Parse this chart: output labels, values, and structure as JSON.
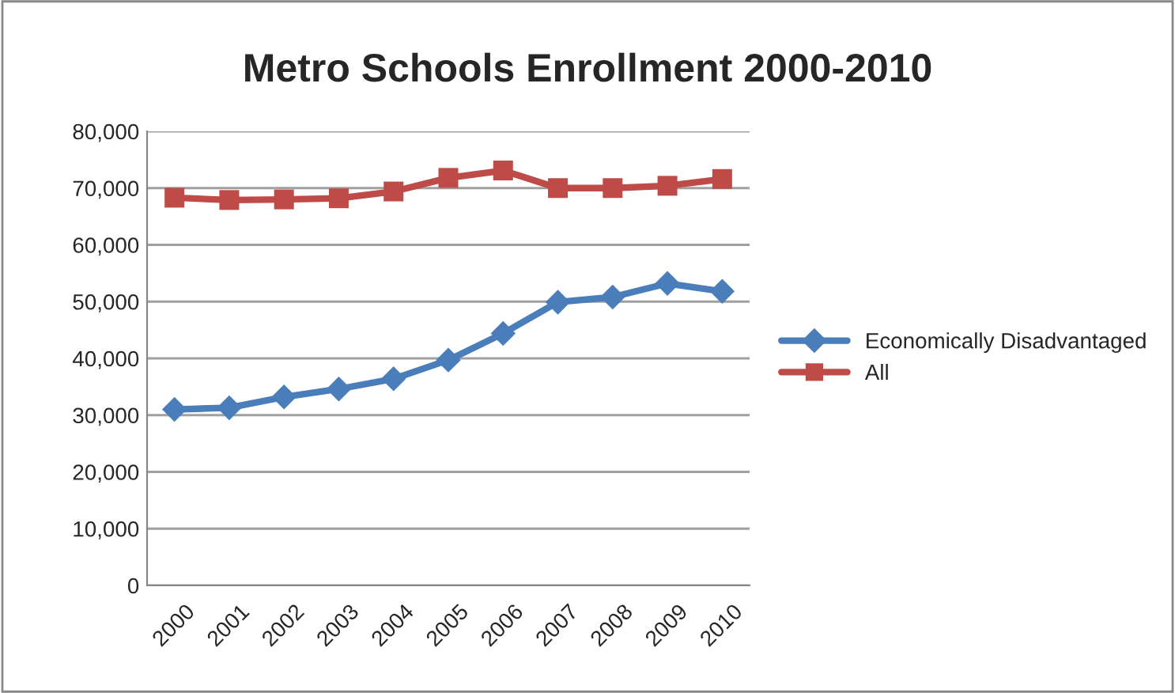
{
  "chart_data": {
    "type": "line",
    "title": "Metro Schools Enrollment 2000-2010",
    "categories": [
      "2000",
      "2001",
      "2002",
      "2003",
      "2004",
      "2005",
      "2006",
      "2007",
      "2008",
      "2009",
      "2010"
    ],
    "series": [
      {
        "name": "Economically Disadvantaged",
        "color": "#4a7ebb",
        "marker": "diamond",
        "values": [
          31000,
          31300,
          33200,
          34600,
          36400,
          39700,
          44400,
          49900,
          50800,
          53200,
          51800
        ]
      },
      {
        "name": "All",
        "color": "#be4b48",
        "marker": "square",
        "values": [
          68300,
          67900,
          68000,
          68200,
          69400,
          71800,
          73100,
          70000,
          70000,
          70400,
          71600
        ]
      }
    ],
    "ylim": [
      0,
      80000
    ],
    "yticks": [
      {
        "value": 0,
        "label": "0"
      },
      {
        "value": 10000,
        "label": "10,000"
      },
      {
        "value": 20000,
        "label": "20,000"
      },
      {
        "value": 30000,
        "label": "30,000"
      },
      {
        "value": 40000,
        "label": "40,000"
      },
      {
        "value": 50000,
        "label": "50,000"
      },
      {
        "value": 60000,
        "label": "60,000"
      },
      {
        "value": 70000,
        "label": "70,000"
      },
      {
        "value": 80000,
        "label": "80,000"
      }
    ],
    "grid": "y",
    "legend": "right",
    "line_style": "solid"
  }
}
